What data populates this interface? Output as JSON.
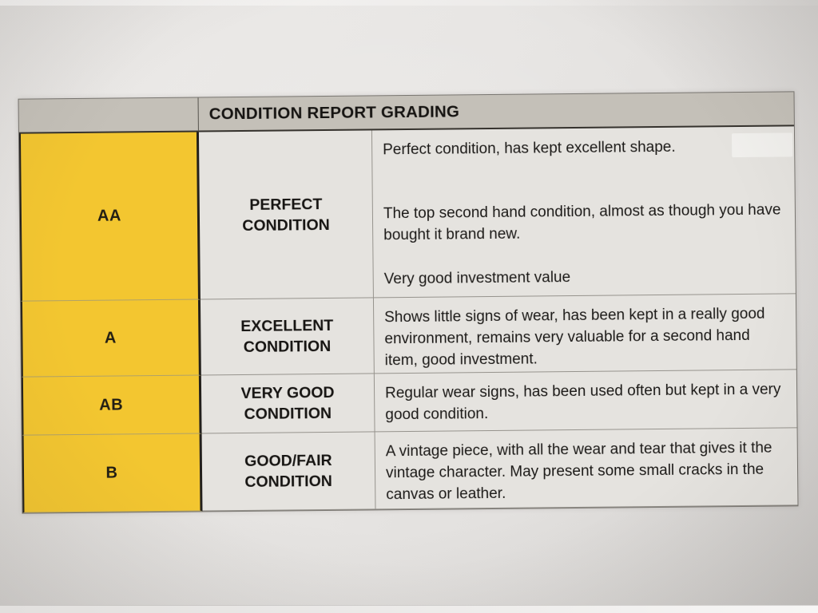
{
  "table": {
    "title": "CONDITION REPORT GRADING",
    "rows": [
      {
        "grade": "AA",
        "condition": "PERFECT CONDITION",
        "description_paragraphs": [
          "Perfect condition, has kept excellent shape.",
          "The top second hand condition, almost as though you have bought it brand new.",
          "Very good investment value"
        ]
      },
      {
        "grade": "A",
        "condition": "EXCELLENT CONDITION",
        "description_paragraphs": [
          "Shows little signs of wear, has been kept in a really good environment, remains very valuable for a second hand item, good investment."
        ]
      },
      {
        "grade": "AB",
        "condition": "VERY GOOD CONDITION",
        "description_paragraphs": [
          "Regular wear signs, has been used often but kept in a very good condition."
        ]
      },
      {
        "grade": "B",
        "condition": "GOOD/FAIR CONDITION",
        "description_paragraphs": [
          "A vintage piece, with all the wear and tear that gives it the vintage character. May present some small cracks in the canvas or leather."
        ]
      }
    ],
    "colors": {
      "grade_cell_yellow": "#F3C630",
      "header_gray": "#C4C0B8",
      "cell_gray": "#E5E3DF",
      "paper": "#E7E5E3",
      "text": "#1B1917"
    }
  }
}
